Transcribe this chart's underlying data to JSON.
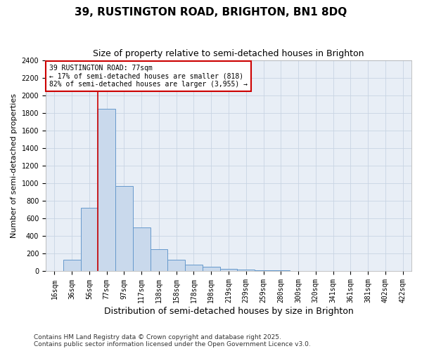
{
  "title": "39, RUSTINGTON ROAD, BRIGHTON, BN1 8DQ",
  "subtitle": "Size of property relative to semi-detached houses in Brighton",
  "xlabel": "Distribution of semi-detached houses by size in Brighton",
  "ylabel": "Number of semi-detached properties",
  "categories": [
    "16sqm",
    "36sqm",
    "56sqm",
    "77sqm",
    "97sqm",
    "117sqm",
    "138sqm",
    "158sqm",
    "178sqm",
    "198sqm",
    "219sqm",
    "239sqm",
    "259sqm",
    "280sqm",
    "300sqm",
    "320sqm",
    "341sqm",
    "361sqm",
    "381sqm",
    "402sqm",
    "422sqm"
  ],
  "values": [
    5,
    130,
    720,
    1850,
    970,
    500,
    250,
    130,
    75,
    55,
    30,
    20,
    10,
    8,
    5,
    3,
    2,
    1,
    1,
    0,
    0
  ],
  "bar_color": "#c9d9ec",
  "bar_edge_color": "#6699cc",
  "grid_color": "#c8d4e3",
  "background_color": "#e8eef6",
  "vline_color": "#cc0000",
  "annotation_text": "39 RUSTINGTON ROAD: 77sqm\n← 17% of semi-detached houses are smaller (818)\n82% of semi-detached houses are larger (3,955) →",
  "annotation_box_facecolor": "#ffffff",
  "annotation_box_edgecolor": "#cc0000",
  "ylim": [
    0,
    2400
  ],
  "yticks": [
    0,
    200,
    400,
    600,
    800,
    1000,
    1200,
    1400,
    1600,
    1800,
    2000,
    2200,
    2400
  ],
  "footer_text": "Contains HM Land Registry data © Crown copyright and database right 2025.\nContains public sector information licensed under the Open Government Licence v3.0.",
  "title_fontsize": 11,
  "subtitle_fontsize": 9,
  "xlabel_fontsize": 9,
  "ylabel_fontsize": 8,
  "tick_fontsize": 7,
  "annotation_fontsize": 7,
  "footer_fontsize": 6.5
}
